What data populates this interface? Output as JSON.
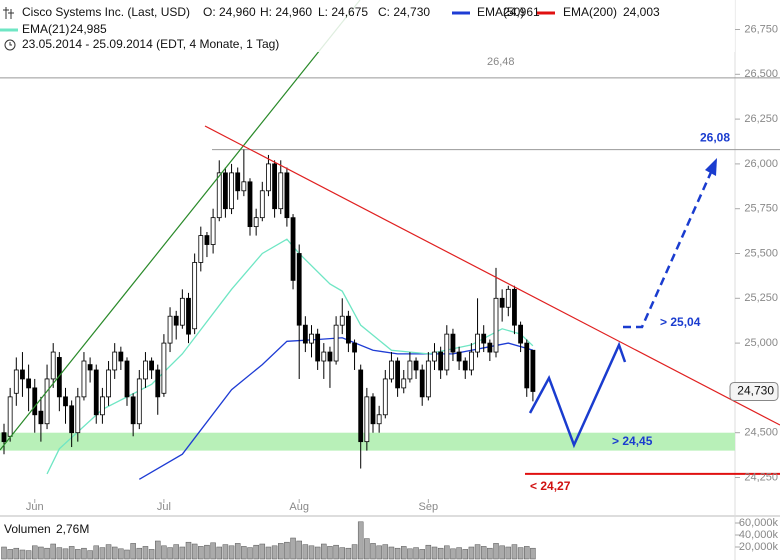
{
  "chart_data": {
    "type": "candlestick",
    "title": "Cisco Systems Inc. (Last, USD)",
    "ohlc_labels": [
      "O: 24,960",
      "H: 24,960",
      "L: 24,675",
      "C: 24,730"
    ],
    "subtitle": "23.05.2014 - 25.09.2014 (EDT, 4 Monate, 1 Tag)",
    "categories": [
      null,
      null,
      null,
      null,
      null,
      "Jun",
      null,
      null,
      null,
      null,
      null,
      null,
      null,
      null,
      null,
      null,
      null,
      null,
      null,
      null,
      null,
      null,
      null,
      null,
      null,
      null,
      "Jul",
      null,
      null,
      null,
      null,
      null,
      null,
      null,
      null,
      null,
      null,
      null,
      null,
      null,
      null,
      null,
      null,
      null,
      null,
      null,
      null,
      null,
      "Aug",
      null,
      null,
      null,
      null,
      null,
      null,
      null,
      null,
      null,
      null,
      null,
      null,
      null,
      null,
      null,
      null,
      null,
      null,
      null,
      null,
      "Sep",
      null,
      null,
      null,
      null,
      null,
      null,
      null,
      null,
      null,
      null,
      null,
      null,
      null,
      null,
      null,
      null,
      null
    ],
    "open": [
      24.5,
      24.48,
      24.72,
      24.85,
      24.8,
      24.75,
      24.62,
      24.55,
      24.8,
      24.92,
      24.7,
      24.65,
      24.5,
      24.7,
      24.88,
      24.85,
      24.6,
      24.7,
      24.85,
      24.95,
      24.9,
      24.7,
      24.55,
      24.8,
      24.9,
      24.85,
      24.72,
      25.0,
      25.15,
      25.1,
      25.25,
      25.08,
      25.45,
      25.6,
      25.55,
      25.7,
      25.95,
      25.75,
      25.95,
      25.85,
      25.9,
      25.65,
      25.7,
      25.85,
      26.0,
      25.75,
      25.95,
      25.7,
      25.5,
      25.1,
      25.0,
      25.05,
      24.9,
      24.95,
      24.9,
      25.1,
      25.15,
      25.0,
      24.85,
      24.45,
      24.7,
      24.55,
      24.6,
      24.8,
      24.9,
      24.75,
      24.8,
      24.9,
      24.85,
      24.7,
      24.9,
      24.95,
      24.85,
      25.05,
      24.95,
      24.9,
      24.85,
      24.95,
      25.05,
      25.0,
      24.95,
      25.25,
      25.2,
      25.3,
      25.1,
      25.0,
      24.96
    ],
    "high": [
      24.55,
      24.75,
      24.92,
      24.95,
      24.88,
      24.8,
      24.7,
      24.88,
      25.0,
      24.95,
      24.75,
      24.68,
      24.75,
      24.95,
      24.92,
      24.88,
      24.75,
      24.9,
      25.0,
      24.98,
      24.92,
      24.72,
      24.85,
      24.95,
      24.92,
      24.88,
      25.05,
      25.2,
      25.18,
      25.3,
      25.28,
      25.5,
      25.65,
      25.62,
      25.75,
      26.02,
      25.98,
      26.0,
      25.98,
      26.08,
      25.92,
      25.75,
      25.9,
      26.05,
      26.02,
      26.02,
      25.98,
      25.72,
      25.55,
      25.15,
      25.1,
      25.08,
      25.0,
      24.98,
      25.15,
      25.25,
      25.18,
      25.02,
      24.88,
      24.75,
      24.72,
      24.65,
      24.85,
      24.95,
      24.92,
      24.85,
      24.95,
      24.92,
      24.88,
      24.95,
      25.0,
      24.98,
      25.1,
      25.08,
      24.98,
      24.92,
      25.0,
      25.25,
      25.1,
      25.02,
      25.42,
      25.3,
      25.32,
      25.32,
      25.12,
      25.02,
      24.96
    ],
    "low": [
      24.38,
      24.45,
      24.65,
      24.7,
      24.62,
      24.5,
      24.45,
      24.52,
      24.75,
      24.62,
      24.55,
      24.42,
      24.45,
      24.68,
      24.78,
      24.55,
      24.55,
      24.65,
      24.8,
      24.85,
      24.65,
      24.48,
      24.52,
      24.75,
      24.8,
      24.6,
      24.7,
      24.95,
      25.02,
      25.08,
      25.0,
      25.05,
      25.4,
      25.48,
      25.5,
      25.68,
      25.7,
      25.72,
      25.8,
      25.82,
      25.6,
      25.6,
      25.68,
      25.82,
      25.7,
      25.72,
      25.65,
      25.3,
      24.8,
      24.95,
      24.92,
      24.85,
      24.8,
      24.75,
      24.88,
      25.05,
      24.95,
      24.85,
      24.3,
      24.4,
      24.5,
      24.5,
      24.58,
      24.78,
      24.7,
      24.72,
      24.78,
      24.8,
      24.65,
      24.68,
      24.85,
      24.8,
      24.82,
      24.9,
      24.85,
      24.8,
      24.82,
      24.92,
      24.95,
      24.9,
      24.92,
      25.12,
      25.15,
      25.05,
      24.95,
      24.7,
      24.675
    ],
    "close": [
      24.45,
      24.7,
      24.85,
      24.8,
      24.75,
      24.6,
      24.55,
      24.8,
      24.95,
      24.7,
      24.65,
      24.5,
      24.7,
      24.9,
      24.85,
      24.6,
      24.7,
      24.85,
      24.95,
      24.9,
      24.7,
      24.55,
      24.8,
      24.9,
      24.85,
      24.7,
      25.0,
      25.15,
      25.1,
      25.25,
      25.05,
      25.45,
      25.6,
      25.55,
      25.7,
      25.95,
      25.75,
      25.95,
      25.85,
      25.9,
      25.65,
      25.7,
      25.85,
      26.0,
      25.75,
      25.95,
      25.7,
      25.35,
      25.1,
      25.0,
      25.05,
      24.9,
      24.95,
      24.9,
      25.1,
      25.15,
      25.0,
      24.95,
      24.45,
      24.7,
      24.55,
      24.6,
      24.8,
      24.9,
      24.75,
      24.8,
      24.9,
      24.85,
      24.7,
      24.9,
      24.95,
      24.85,
      25.05,
      24.95,
      24.9,
      24.85,
      24.95,
      25.05,
      25.0,
      24.95,
      25.25,
      25.2,
      25.3,
      25.1,
      25.0,
      24.75,
      24.73
    ],
    "volume_title": "Volumen",
    "volume_label": "2,76M",
    "volume": [
      20000,
      16000,
      18000,
      15000,
      14000,
      22000,
      20000,
      18000,
      25000,
      19000,
      17000,
      21000,
      16000,
      18000,
      14000,
      22000,
      19000,
      24000,
      20000,
      17000,
      15000,
      26000,
      18000,
      21000,
      16000,
      30000,
      22000,
      19000,
      24000,
      20000,
      28000,
      25000,
      21000,
      23000,
      27000,
      20000,
      24000,
      22000,
      26000,
      21000,
      19000,
      23000,
      25000,
      20000,
      22000,
      26000,
      28000,
      35000,
      30000,
      24000,
      22000,
      20000,
      25000,
      21000,
      23000,
      19000,
      18000,
      24000,
      62000,
      34000,
      26000,
      22000,
      24000,
      20000,
      18000,
      21000,
      17000,
      19000,
      16000,
      23000,
      20000,
      18000,
      22000,
      17000,
      19000,
      16000,
      20000,
      24000,
      21000,
      18000,
      26000,
      22000,
      20000,
      24000,
      19000,
      21000,
      18000
    ],
    "vlim": [
      0,
      70000
    ],
    "vticks": [
      {
        "value": 60000,
        "label": "60,000k"
      },
      {
        "value": 40000,
        "label": "40,000k"
      },
      {
        "value": 20000,
        "label": "20,000k"
      }
    ],
    "ylim": [
      24.13,
      26.87
    ],
    "yticks": [
      {
        "value": 26.75,
        "label": "26,750"
      },
      {
        "value": 26.5,
        "label": "26,500"
      },
      {
        "value": 26.25,
        "label": "26,250"
      },
      {
        "value": 26,
        "label": "26,000"
      },
      {
        "value": 25.75,
        "label": "25,750"
      },
      {
        "value": 25.5,
        "label": "25,500"
      },
      {
        "value": 25.25,
        "label": "25,250"
      },
      {
        "value": 25,
        "label": "25,000"
      },
      {
        "value": 24.75,
        "label": "24,750"
      },
      {
        "value": 24.5,
        "label": "24,500"
      },
      {
        "value": 24.25,
        "label": "24,250"
      }
    ],
    "last_price": {
      "value": 24.73,
      "label": "24,730"
    },
    "series": [
      {
        "name": "EMA(50)",
        "value_label": "24,961",
        "color": "#1e3cd4",
        "x": [
          22,
          29,
          37,
          42,
          46,
          51,
          55,
          60,
          64,
          73,
          79,
          82,
          86
        ],
        "values": [
          24.24,
          24.38,
          24.74,
          24.88,
          25.01,
          25.02,
          25.03,
          24.96,
          24.94,
          24.94,
          24.98,
          25.0,
          24.961
        ]
      },
      {
        "name": "EMA(200)",
        "value_label": "24,003",
        "color": "#e01010"
      },
      {
        "name": "EMA(21)",
        "value_label": "24,985",
        "color": "#6fe6c4",
        "x": [
          7,
          9,
          16,
          24,
          29,
          37,
          42,
          46,
          48,
          53,
          55,
          58,
          63,
          69,
          76,
          81,
          84,
          86
        ],
        "values": [
          24.27,
          24.41,
          24.63,
          24.77,
          24.94,
          25.3,
          25.5,
          25.58,
          25.5,
          25.33,
          25.29,
          25.1,
          24.96,
          24.94,
          24.99,
          25.08,
          25.05,
          24.985
        ]
      }
    ],
    "annotations": {
      "resistance": {
        "value": 26.48,
        "label": "26,48"
      },
      "target": {
        "value": 26.08,
        "label": "26,08"
      },
      "breakout_label": "> 25,04",
      "support_zone": {
        "low": 24.4,
        "high": 24.5,
        "label": "> 24,45"
      },
      "stop": {
        "value": 24.27,
        "label": "< 24,27"
      }
    }
  }
}
